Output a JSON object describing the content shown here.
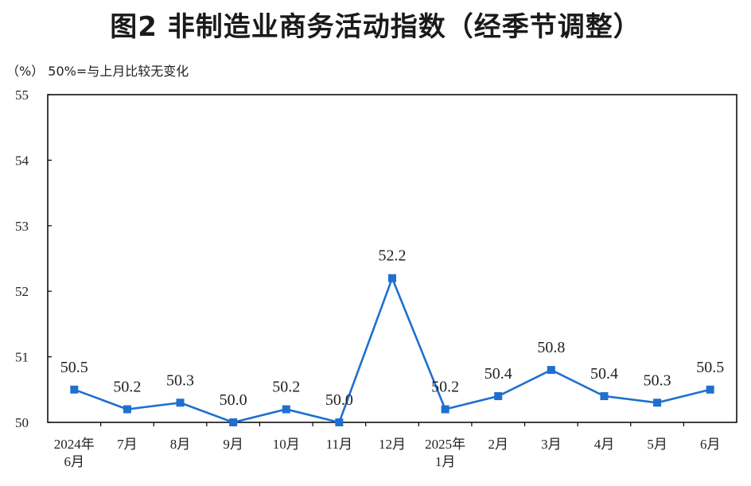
{
  "title": "图2  非制造业商务活动指数（经季节调整）",
  "unit_note": "（%）  50%=与上月比较无变化",
  "colors": {
    "series": "#1f6fd1",
    "axis": "#000000",
    "text": "#222222"
  },
  "chart_data": {
    "type": "line",
    "title": "图2  非制造业商务活动指数（经季节调整）",
    "ylabel": "（%）",
    "ylim": [
      50,
      55
    ],
    "yticks": [
      "50",
      "51",
      "52",
      "53",
      "54",
      "55"
    ],
    "grid": false,
    "categories": [
      [
        "2024年",
        "6月"
      ],
      [
        "7月"
      ],
      [
        "8月"
      ],
      [
        "9月"
      ],
      [
        "10月"
      ],
      [
        "11月"
      ],
      [
        "12月"
      ],
      [
        "2025年",
        "1月"
      ],
      [
        "2月"
      ],
      [
        "3月"
      ],
      [
        "4月"
      ],
      [
        "5月"
      ],
      [
        "6月"
      ]
    ],
    "series": [
      {
        "values": [
          50.5,
          50.2,
          50.3,
          50.0,
          50.2,
          50.0,
          52.2,
          50.2,
          50.4,
          50.8,
          50.4,
          50.3,
          50.5
        ],
        "labels": [
          "50.5",
          "50.2",
          "50.3",
          "50.0",
          "50.2",
          "50.0",
          "52.2",
          "50.2",
          "50.4",
          "50.8",
          "50.4",
          "50.3",
          "50.5"
        ]
      }
    ]
  }
}
